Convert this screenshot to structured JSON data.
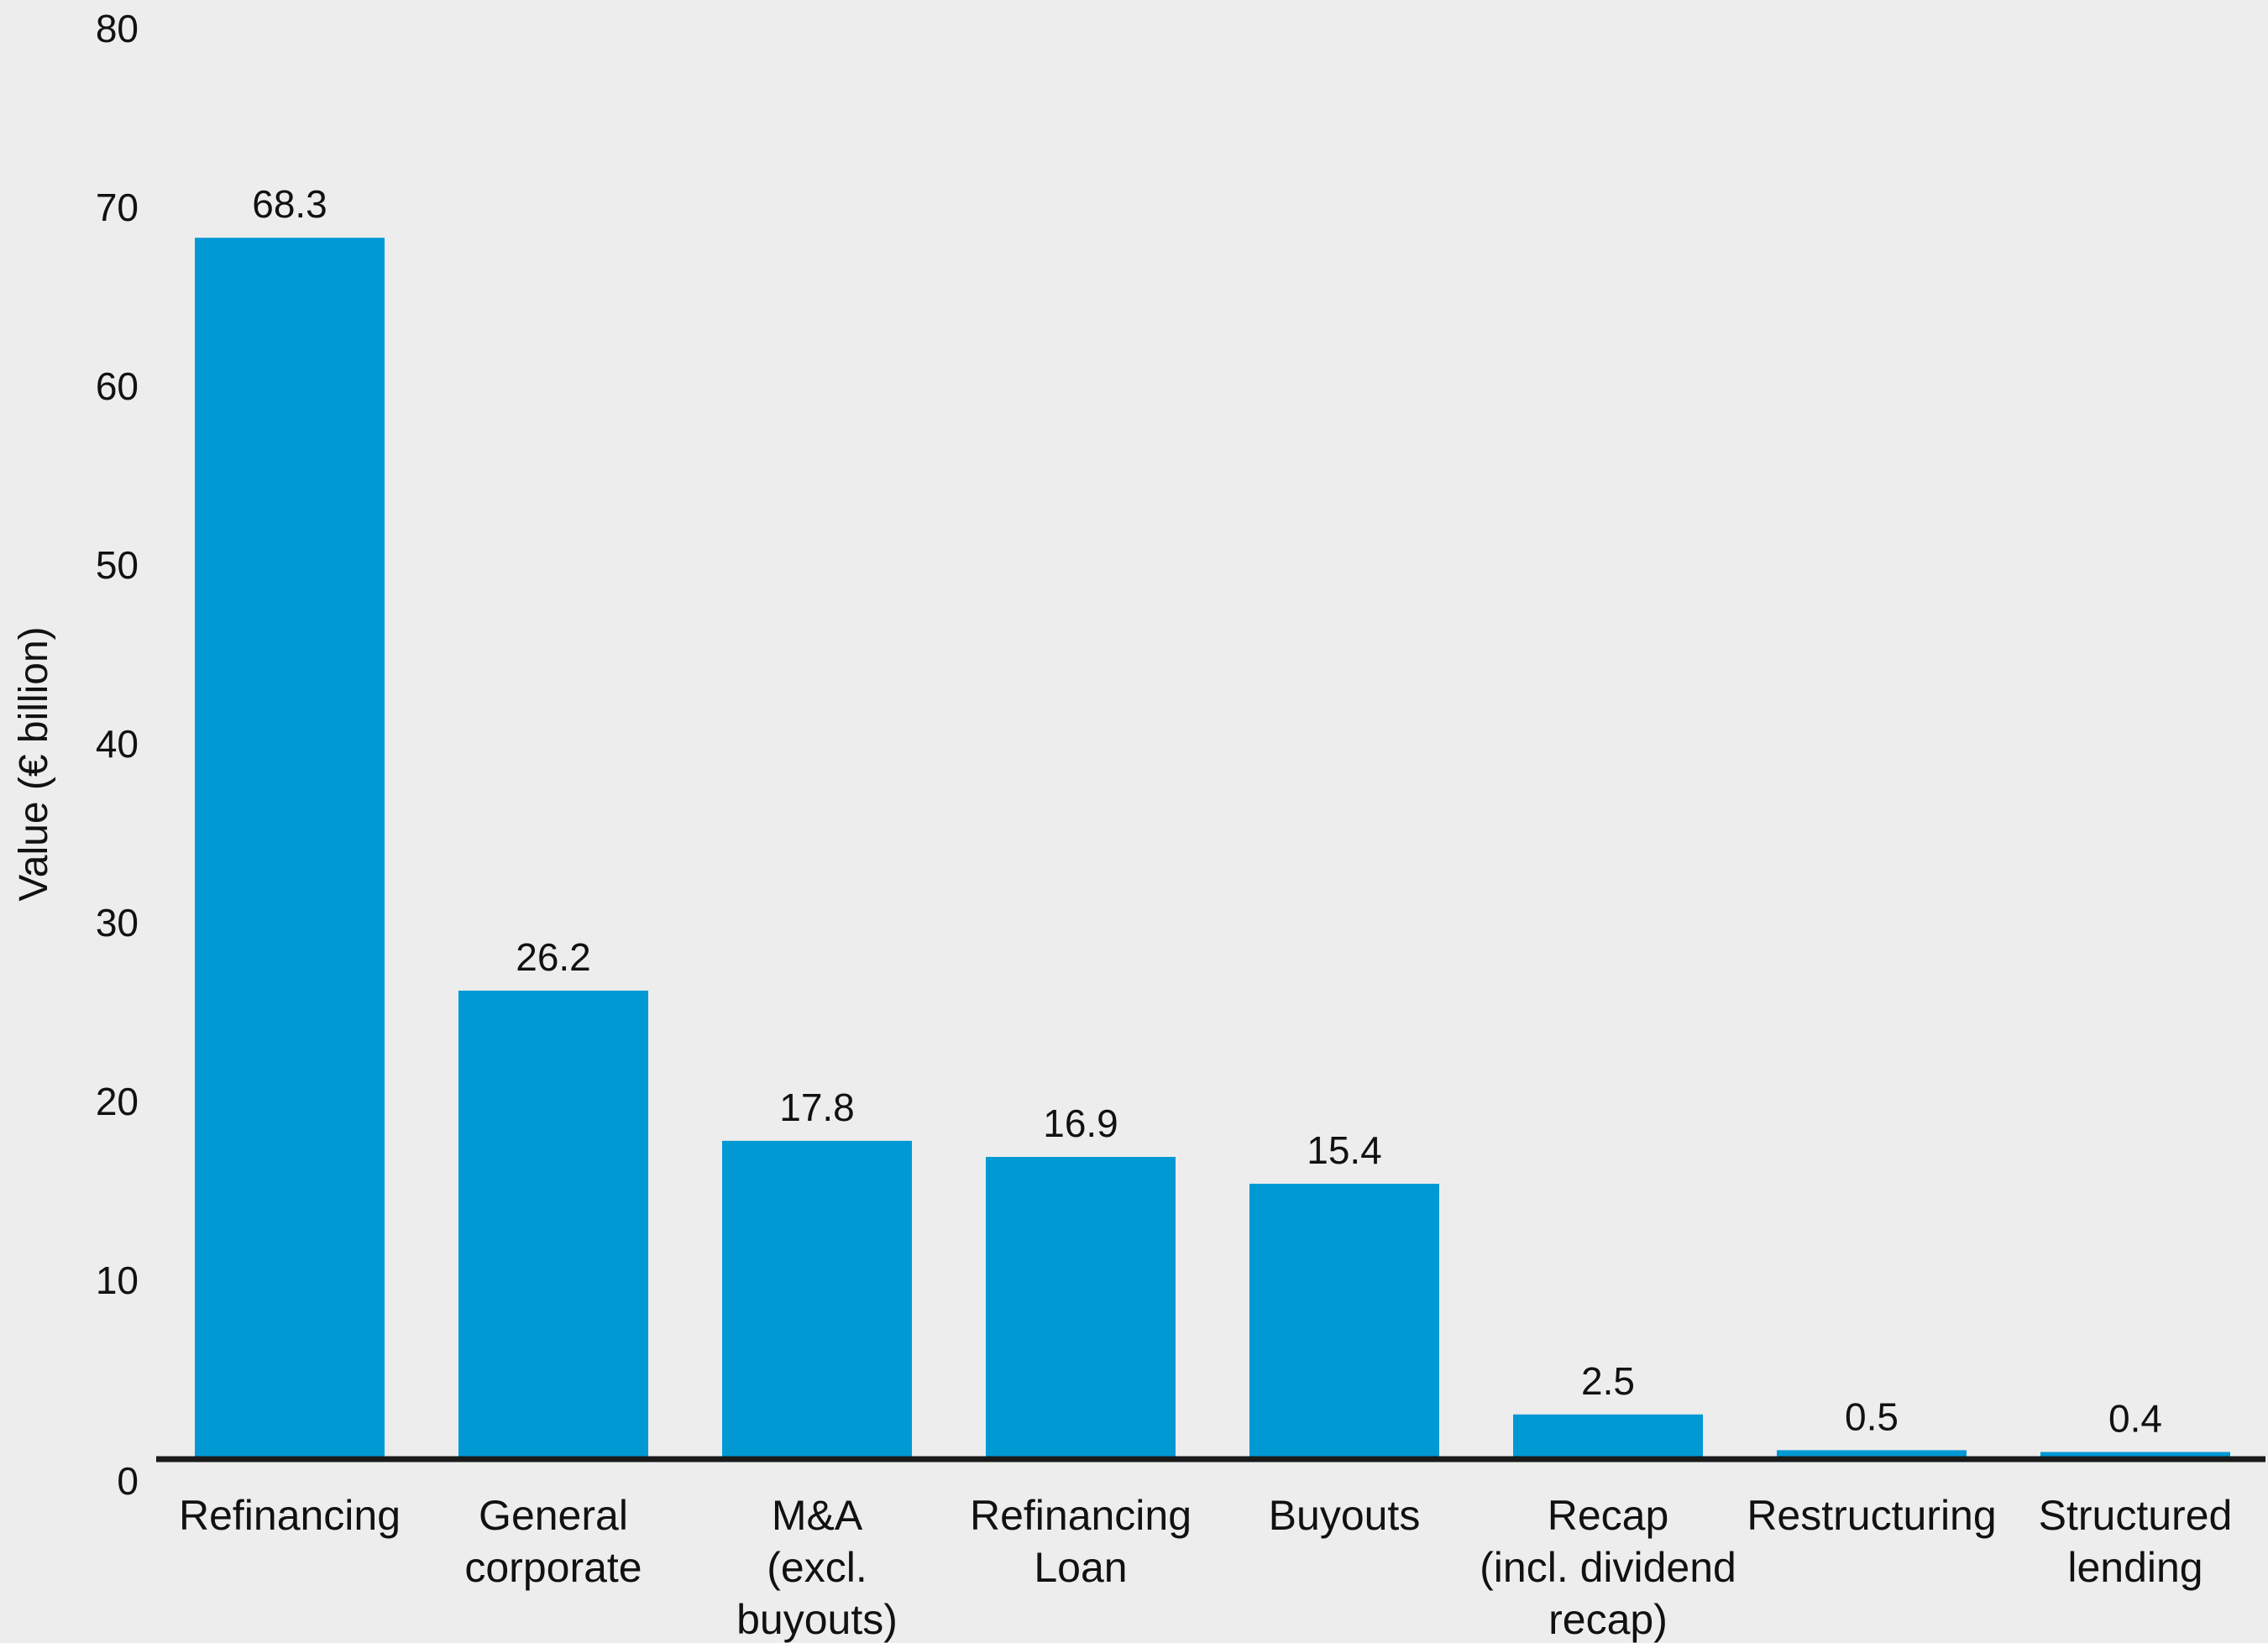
{
  "chart_data": {
    "type": "bar",
    "title": "",
    "xlabel": "",
    "ylabel": "Value (€ billion)",
    "ylim": [
      0,
      80
    ],
    "yticks": [
      "0",
      "10",
      "20",
      "30",
      "40",
      "50",
      "60",
      "70",
      "80"
    ],
    "grid": false,
    "categories": [
      [
        "Refinancing"
      ],
      [
        "General",
        "corporate"
      ],
      [
        "M&A",
        "(excl.",
        "buyouts)"
      ],
      [
        "Refinancing",
        "Loan"
      ],
      [
        "Buyouts"
      ],
      [
        "Recap",
        "(incl. dividend",
        "recap)"
      ],
      [
        "Restructuring"
      ],
      [
        "Structured",
        "lending"
      ]
    ],
    "values": [
      68.3,
      26.2,
      17.8,
      16.9,
      15.4,
      2.5,
      0.5,
      0.4
    ],
    "value_labels": [
      "68.3",
      "26.2",
      "17.8",
      "16.9",
      "15.4",
      "2.5",
      "0.5",
      "0.4"
    ],
    "bar_color": "#0099d4",
    "axis_color": "#1a1a1a",
    "background": "#ededed"
  }
}
